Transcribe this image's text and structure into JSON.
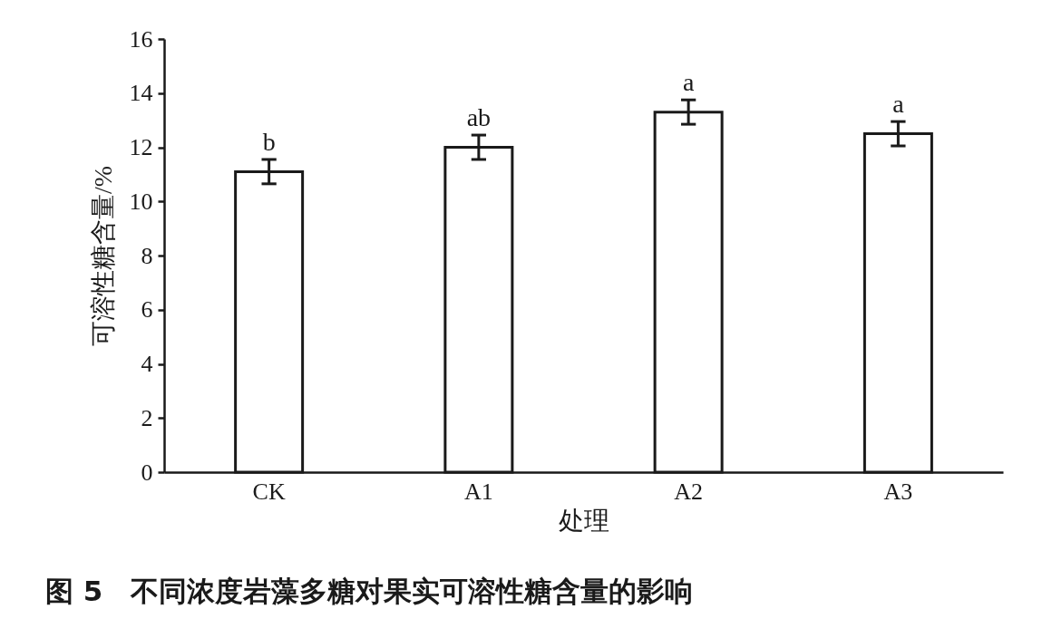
{
  "chart_data": {
    "type": "bar",
    "title": "图 5　不同浓度岩藻多糖对果实可溶性糖含量的影响",
    "xlabel": "处理",
    "ylabel": "可溶性糖含量/%",
    "categories": [
      "CK",
      "A1",
      "A2",
      "A3"
    ],
    "values": [
      11.1,
      12.0,
      13.3,
      12.5
    ],
    "errors": [
      0.45,
      0.45,
      0.45,
      0.45
    ],
    "color": "#ffffff",
    "ylim": [
      0,
      16
    ],
    "yticks": [
      0,
      2,
      4,
      6,
      8,
      10,
      12,
      14,
      16
    ],
    "grid": false,
    "annotations": [
      {
        "text": "b",
        "x": "CK",
        "y": 11.55
      },
      {
        "text": "ab",
        "x": "A1",
        "y": 12.45
      },
      {
        "text": "a",
        "x": "A2",
        "y": 13.75
      },
      {
        "text": "a",
        "x": "A3",
        "y": 12.95
      }
    ]
  }
}
